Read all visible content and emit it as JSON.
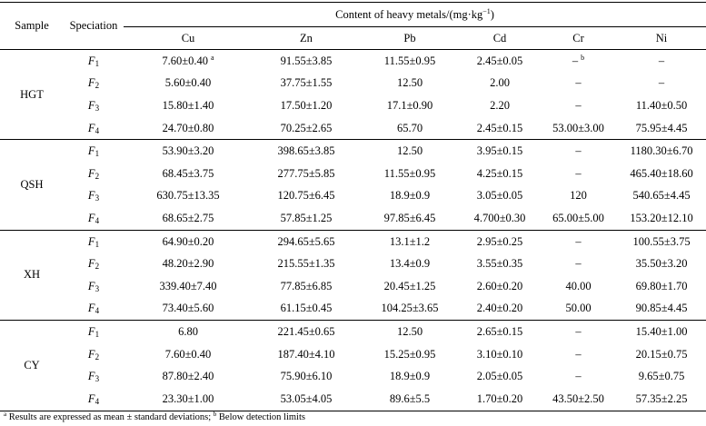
{
  "header": {
    "sample": "Sample",
    "speciation": "Speciation",
    "content_title": "Content of heavy metals/(mg·kg",
    "content_exp": "−1",
    "content_close": ")",
    "metals": [
      "Cu",
      "Zn",
      "Pb",
      "Cd",
      "Cr",
      "Ni"
    ]
  },
  "groups": [
    {
      "sample": "HGT",
      "rows": [
        {
          "spec": "F",
          "sub": "1",
          "cu": "7.60±0.40",
          "cu_sup": "a",
          "zn": "91.55±3.85",
          "pb": "11.55±0.95",
          "cd": "2.45±0.05",
          "cr": "–",
          "cr_sup": "b",
          "ni": "–"
        },
        {
          "spec": "F",
          "sub": "2",
          "cu": "5.60±0.40",
          "zn": "37.75±1.55",
          "pb": "12.50",
          "cd": "2.00",
          "cr": "–",
          "ni": "–"
        },
        {
          "spec": "F",
          "sub": "3",
          "cu": "15.80±1.40",
          "zn": "17.50±1.20",
          "pb": "17.1±0.90",
          "cd": "2.20",
          "cr": "–",
          "ni": "11.40±0.50"
        },
        {
          "spec": "F",
          "sub": "4",
          "cu": "24.70±0.80",
          "zn": "70.25±2.65",
          "pb": "65.70",
          "cd": "2.45±0.15",
          "cr": "53.00±3.00",
          "ni": "75.95±4.45"
        }
      ]
    },
    {
      "sample": "QSH",
      "rows": [
        {
          "spec": "F",
          "sub": "1",
          "cu": "53.90±3.20",
          "zn": "398.65±3.85",
          "pb": "12.50",
          "cd": "3.95±0.15",
          "cr": "–",
          "ni": "1180.30±6.70"
        },
        {
          "spec": "F",
          "sub": "2",
          "cu": "68.45±3.75",
          "zn": "277.75±5.85",
          "pb": "11.55±0.95",
          "cd": "4.25±0.15",
          "cr": "–",
          "ni": "465.40±18.60"
        },
        {
          "spec": "F",
          "sub": "3",
          "cu": "630.75±13.35",
          "zn": "120.75±6.45",
          "pb": "18.9±0.9",
          "cd": "3.05±0.05",
          "cr": "120",
          "ni": "540.65±4.45"
        },
        {
          "spec": "F",
          "sub": "4",
          "cu": "68.65±2.75",
          "zn": "57.85±1.25",
          "pb": "97.85±6.45",
          "cd": "4.700±0.30",
          "cr": "65.00±5.00",
          "ni": "153.20±12.10"
        }
      ]
    },
    {
      "sample": "XH",
      "rows": [
        {
          "spec": "F",
          "sub": "1",
          "cu": "64.90±0.20",
          "zn": "294.65±5.65",
          "pb": "13.1±1.2",
          "cd": "2.95±0.25",
          "cr": "–",
          "ni": "100.55±3.75"
        },
        {
          "spec": "F",
          "sub": "2",
          "cu": "48.20±2.90",
          "zn": "215.55±1.35",
          "pb": "13.4±0.9",
          "cd": "3.55±0.35",
          "cr": "–",
          "ni": "35.50±3.20"
        },
        {
          "spec": "F",
          "sub": "3",
          "cu": "339.40±7.40",
          "zn": "77.85±6.85",
          "pb": "20.45±1.25",
          "cd": "2.60±0.20",
          "cr": "40.00",
          "ni": "69.80±1.70"
        },
        {
          "spec": "F",
          "sub": "4",
          "cu": "73.40±5.60",
          "zn": "61.15±0.45",
          "pb": "104.25±3.65",
          "cd": "2.40±0.20",
          "cr": "50.00",
          "ni": "90.85±4.45"
        }
      ]
    },
    {
      "sample": "CY",
      "rows": [
        {
          "spec": "F",
          "sub": "1",
          "cu": "6.80",
          "zn": "221.45±0.65",
          "pb": "12.50",
          "cd": "2.65±0.15",
          "cr": "–",
          "ni": "15.40±1.00"
        },
        {
          "spec": "F",
          "sub": "2",
          "cu": "7.60±0.40",
          "zn": "187.40±4.10",
          "pb": "15.25±0.95",
          "cd": "3.10±0.10",
          "cr": "–",
          "ni": "20.15±0.75"
        },
        {
          "spec": "F",
          "sub": "3",
          "cu": "87.80±2.40",
          "zn": "75.90±6.10",
          "pb": "18.9±0.9",
          "cd": "2.05±0.05",
          "cr": "–",
          "ni": "9.65±0.75"
        },
        {
          "spec": "F",
          "sub": "4",
          "cu": "23.30±1.00",
          "zn": "53.05±4.05",
          "pb": "89.6±5.5",
          "cd": "1.70±0.20",
          "cr": "43.50±2.50",
          "ni": "57.35±2.25"
        }
      ]
    }
  ],
  "footnote": {
    "a_mark": "a",
    "a_text": " Results are expressed as mean ± standard deviations; ",
    "b_mark": "b",
    "b_text": " Below detection limits"
  }
}
